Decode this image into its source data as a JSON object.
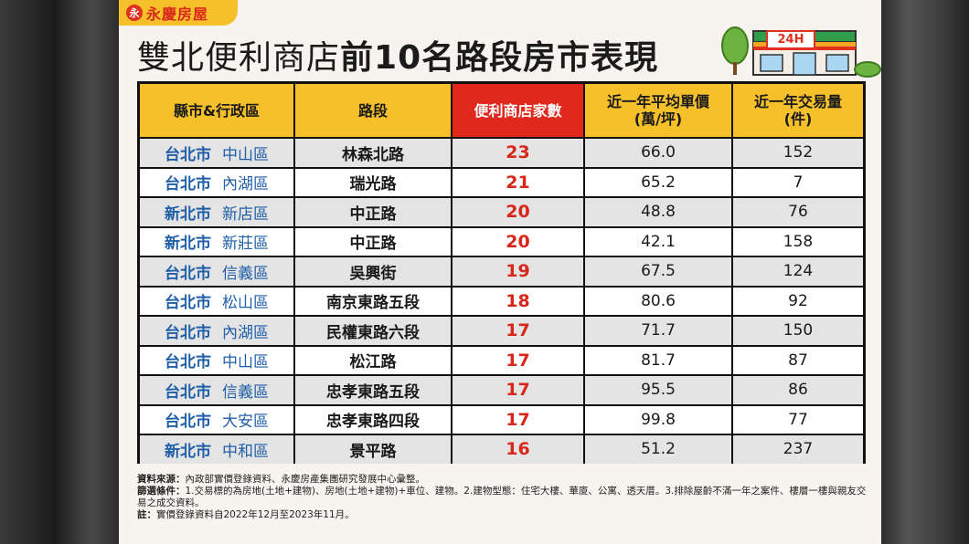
{
  "brand": {
    "logo_mark": "永",
    "logo_text": "永慶房屋"
  },
  "title": {
    "part1": "雙北便利商店",
    "part2": "前10名路段房市表現"
  },
  "store_sign": "24H",
  "table": {
    "headers": [
      "縣市&行政區",
      "路段",
      "便利商店家數",
      "近一年平均單價\n(萬/坪)",
      "近一年交易量\n(件)"
    ],
    "rows": [
      {
        "city": "台北市",
        "district": "中山區",
        "road": "林森北路",
        "stores": "23",
        "price": "66.0",
        "volume": "152"
      },
      {
        "city": "台北市",
        "district": "內湖區",
        "road": "瑞光路",
        "stores": "21",
        "price": "65.2",
        "volume": "7"
      },
      {
        "city": "新北市",
        "district": "新店區",
        "road": "中正路",
        "stores": "20",
        "price": "48.8",
        "volume": "76"
      },
      {
        "city": "新北市",
        "district": "新莊區",
        "road": "中正路",
        "stores": "20",
        "price": "42.1",
        "volume": "158"
      },
      {
        "city": "台北市",
        "district": "信義區",
        "road": "吳興街",
        "stores": "19",
        "price": "67.5",
        "volume": "124"
      },
      {
        "city": "台北市",
        "district": "松山區",
        "road": "南京東路五段",
        "stores": "18",
        "price": "80.6",
        "volume": "92"
      },
      {
        "city": "台北市",
        "district": "內湖區",
        "road": "民權東路六段",
        "stores": "17",
        "price": "71.7",
        "volume": "150"
      },
      {
        "city": "台北市",
        "district": "中山區",
        "road": "松江路",
        "stores": "17",
        "price": "81.7",
        "volume": "87"
      },
      {
        "city": "台北市",
        "district": "信義區",
        "road": "忠孝東路五段",
        "stores": "17",
        "price": "95.5",
        "volume": "86"
      },
      {
        "city": "台北市",
        "district": "大安區",
        "road": "忠孝東路四段",
        "stores": "17",
        "price": "99.8",
        "volume": "77"
      },
      {
        "city": "新北市",
        "district": "中和區",
        "road": "景平路",
        "stores": "16",
        "price": "51.2",
        "volume": "237"
      }
    ]
  },
  "notes": {
    "source_label": "資料來源：",
    "source_text": "內政部實價登錄資料、永慶房產集團研究發展中心彙整。",
    "filter_label": "篩選條件：",
    "filter_text": "1.交易標的為房地(土地+建物)、房地(土地+建物)+車位、建物。2.建物型態：住宅大樓、華廈、公寓、透天厝。3.排除屋齡不滿一年之案件、樓層一樓與親友交易之成交資料。",
    "note_label": "註：",
    "note_text": "實價登錄資料自2022年12月至2023年11月。"
  },
  "colors": {
    "brand_yellow": "#f6c02a",
    "accent_red": "#e0281c",
    "district_blue": "#1f5ea8"
  }
}
